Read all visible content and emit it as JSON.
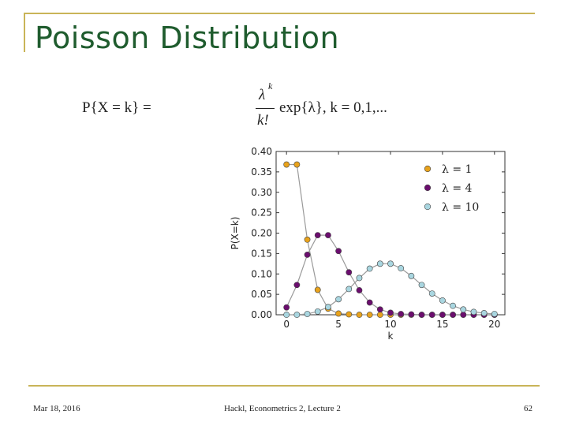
{
  "slide": {
    "title": "Poisson Distribution",
    "formula": {
      "lhs": "P{X = k} =",
      "numerator": "λ",
      "numerator_sup": "k",
      "denominator": "k!",
      "rhs": "exp{λ}, k = 0,1,..."
    },
    "footer": {
      "date": "Mar 18, 2016",
      "center": "Hackl, Econometrics 2, Lecture 2",
      "page": "62"
    }
  },
  "chart_data": {
    "type": "line",
    "xlabel": "k",
    "ylabel": "P(X=k)",
    "xlim": [
      -1,
      21
    ],
    "ylim": [
      0,
      0.4
    ],
    "xticks": [
      0,
      5,
      10,
      15,
      20
    ],
    "yticks": [
      "0.00",
      "0.05",
      "0.10",
      "0.15",
      "0.20",
      "0.25",
      "0.30",
      "0.35",
      "0.40"
    ],
    "legend_position": "top-right",
    "grid": false,
    "x": [
      0,
      1,
      2,
      3,
      4,
      5,
      6,
      7,
      8,
      9,
      10,
      11,
      12,
      13,
      14,
      15,
      16,
      17,
      18,
      19,
      20
    ],
    "series": [
      {
        "name": "λ = 1",
        "color": "#e8a21c",
        "values": [
          0.368,
          0.368,
          0.184,
          0.061,
          0.015,
          0.003,
          0.001,
          0,
          0,
          0,
          0,
          0,
          0,
          0,
          0,
          0,
          0,
          0,
          0,
          0,
          0
        ]
      },
      {
        "name": "λ = 4",
        "color": "#6b0e6e",
        "values": [
          0.018,
          0.073,
          0.147,
          0.195,
          0.195,
          0.156,
          0.104,
          0.06,
          0.03,
          0.013,
          0.005,
          0.002,
          0.001,
          0,
          0,
          0,
          0,
          0,
          0,
          0,
          0
        ]
      },
      {
        "name": "λ = 10",
        "color": "#a9d6e0",
        "values": [
          0.0,
          0.0,
          0.002,
          0.008,
          0.019,
          0.038,
          0.063,
          0.09,
          0.113,
          0.125,
          0.125,
          0.114,
          0.095,
          0.073,
          0.052,
          0.035,
          0.022,
          0.013,
          0.007,
          0.004,
          0.002
        ]
      }
    ]
  }
}
